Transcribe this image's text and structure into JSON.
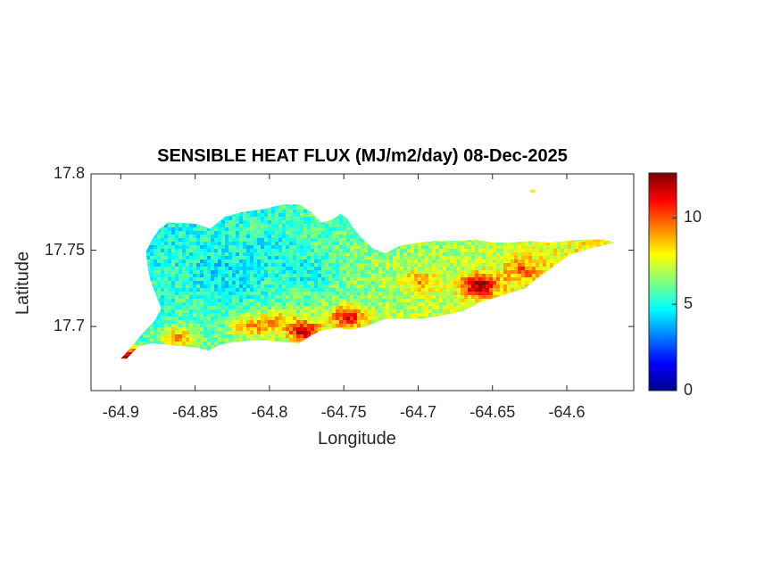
{
  "title": "SENSIBLE HEAT FLUX (MJ/m2/day) 08-Dec-2025",
  "xlabel": "Longitude",
  "ylabel": "Latitude",
  "colors": {
    "axis": "#262626",
    "background": "#ffffff"
  },
  "x_ticks": [
    {
      "value": -64.9,
      "label": "-64.9"
    },
    {
      "value": -64.85,
      "label": "-64.85"
    },
    {
      "value": -64.8,
      "label": "-64.8"
    },
    {
      "value": -64.75,
      "label": "-64.75"
    },
    {
      "value": -64.7,
      "label": "-64.7"
    },
    {
      "value": -64.65,
      "label": "-64.65"
    },
    {
      "value": -64.6,
      "label": "-64.6"
    }
  ],
  "y_ticks": [
    {
      "value": 17.8,
      "label": "17.8"
    },
    {
      "value": 17.75,
      "label": "17.75"
    },
    {
      "value": 17.7,
      "label": "17.7"
    }
  ],
  "colorbar": {
    "colormap": "jet",
    "range": [
      0,
      12.6
    ],
    "ticks": [
      {
        "value": 0,
        "label": "0"
      },
      {
        "value": 5,
        "label": "5"
      },
      {
        "value": 10,
        "label": "10"
      }
    ]
  },
  "chart_data": {
    "type": "heatmap",
    "title": "SENSIBLE HEAT FLUX (MJ/m2/day) 08-Dec-2025",
    "xlabel": "Longitude",
    "ylabel": "Latitude",
    "xlim": [
      -64.92,
      -64.555
    ],
    "ylim": [
      17.658,
      17.8
    ],
    "clim": [
      0,
      12.6
    ],
    "colormap": "jet",
    "grid": false,
    "island_outline": [
      [
        -64.896,
        17.679
      ],
      [
        -64.888,
        17.687
      ],
      [
        -64.879,
        17.689
      ],
      [
        -64.868,
        17.688
      ],
      [
        -64.858,
        17.687
      ],
      [
        -64.848,
        17.686
      ],
      [
        -64.841,
        17.684
      ],
      [
        -64.834,
        17.688
      ],
      [
        -64.822,
        17.69
      ],
      [
        -64.806,
        17.691
      ],
      [
        -64.792,
        17.69
      ],
      [
        -64.78,
        17.689
      ],
      [
        -64.772,
        17.694
      ],
      [
        -64.766,
        17.697
      ],
      [
        -64.755,
        17.699
      ],
      [
        -64.745,
        17.698
      ],
      [
        -64.735,
        17.7
      ],
      [
        -64.722,
        17.705
      ],
      [
        -64.71,
        17.705
      ],
      [
        -64.698,
        17.705
      ],
      [
        -64.685,
        17.707
      ],
      [
        -64.67,
        17.71
      ],
      [
        -64.658,
        17.716
      ],
      [
        -64.648,
        17.719
      ],
      [
        -64.638,
        17.722
      ],
      [
        -64.628,
        17.725
      ],
      [
        -64.618,
        17.733
      ],
      [
        -64.608,
        17.74
      ],
      [
        -64.598,
        17.747
      ],
      [
        -64.585,
        17.751
      ],
      [
        -64.572,
        17.754
      ],
      [
        -64.568,
        17.755
      ],
      [
        -64.575,
        17.757
      ],
      [
        -64.588,
        17.757
      ],
      [
        -64.6,
        17.756
      ],
      [
        -64.612,
        17.755
      ],
      [
        -64.625,
        17.756
      ],
      [
        -64.638,
        17.755
      ],
      [
        -64.65,
        17.755
      ],
      [
        -64.662,
        17.757
      ],
      [
        -64.675,
        17.756
      ],
      [
        -64.688,
        17.756
      ],
      [
        -64.7,
        17.755
      ],
      [
        -64.712,
        17.753
      ],
      [
        -64.722,
        17.748
      ],
      [
        -64.73,
        17.751
      ],
      [
        -64.738,
        17.758
      ],
      [
        -64.744,
        17.765
      ],
      [
        -64.748,
        17.771
      ],
      [
        -64.752,
        17.774
      ],
      [
        -64.758,
        17.77
      ],
      [
        -64.765,
        17.768
      ],
      [
        -64.772,
        17.775
      ],
      [
        -64.78,
        17.78
      ],
      [
        -64.791,
        17.78
      ],
      [
        -64.804,
        17.777
      ],
      [
        -64.818,
        17.775
      ],
      [
        -64.83,
        17.772
      ],
      [
        -64.84,
        17.764
      ],
      [
        -64.848,
        17.767
      ],
      [
        -64.858,
        17.768
      ],
      [
        -64.868,
        17.768
      ],
      [
        -64.874,
        17.764
      ],
      [
        -64.879,
        17.757
      ],
      [
        -64.883,
        17.749
      ],
      [
        -64.882,
        17.74
      ],
      [
        -64.88,
        17.73
      ],
      [
        -64.876,
        17.72
      ],
      [
        -64.873,
        17.712
      ],
      [
        -64.877,
        17.704
      ],
      [
        -64.884,
        17.697
      ],
      [
        -64.891,
        17.689
      ],
      [
        -64.897,
        17.682
      ],
      [
        -64.9,
        17.679
      ]
    ],
    "field": {
      "base_value": 6.0,
      "west_value": 5.0,
      "east_value": 8.5,
      "hotspots": [
        {
          "lon": -64.898,
          "lat": 17.68,
          "value": 12.6
        },
        {
          "lon": -64.658,
          "lat": 17.727,
          "value": 12.5
        },
        {
          "lon": -64.777,
          "lat": 17.697,
          "value": 11.8
        },
        {
          "lon": -64.747,
          "lat": 17.706,
          "value": 11.0
        },
        {
          "lon": -64.63,
          "lat": 17.737,
          "value": 9.8
        },
        {
          "lon": -64.7,
          "lat": 17.73,
          "value": 9.0
        },
        {
          "lon": -64.795,
          "lat": 17.703,
          "value": 9.3
        },
        {
          "lon": -64.861,
          "lat": 17.693,
          "value": 9.0
        },
        {
          "lon": -64.812,
          "lat": 17.7,
          "value": 9.3
        }
      ],
      "coldspots": [
        {
          "lon": -64.835,
          "lat": 17.738,
          "value": 4.2
        },
        {
          "lon": -64.8,
          "lat": 17.748,
          "value": 4.4
        },
        {
          "lon": -64.775,
          "lat": 17.735,
          "value": 4.6
        },
        {
          "lon": -64.82,
          "lat": 17.728,
          "value": 4.5
        }
      ]
    },
    "small_islet": {
      "lon": -64.623,
      "lat": 17.789,
      "value": 8.2
    }
  }
}
